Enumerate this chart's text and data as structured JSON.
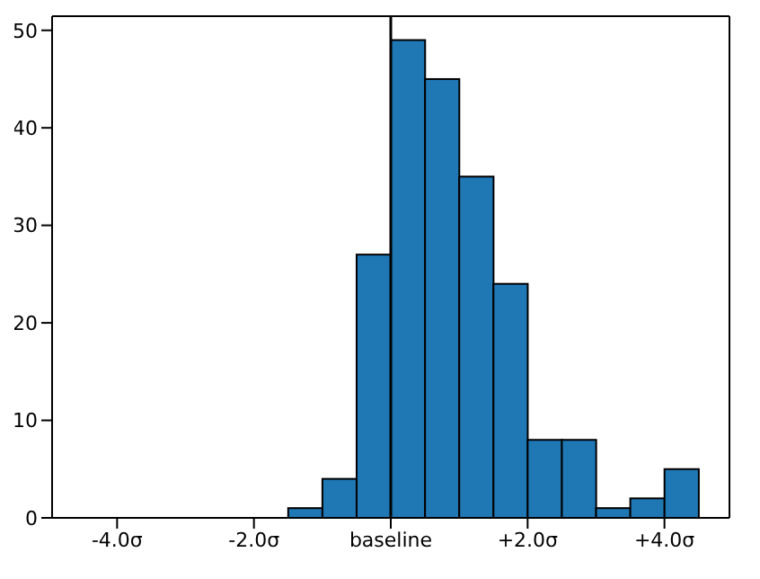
{
  "chart_data": {
    "type": "histogram",
    "bins": [
      -4.5,
      -4,
      -3.5,
      -3,
      -2.5,
      -2,
      -1.5,
      -1,
      -0.5,
      0,
      0.5,
      1,
      1.5,
      2,
      2.5,
      3,
      3.5,
      4,
      4.5
    ],
    "values": [
      0,
      0,
      0,
      0,
      0,
      0,
      1,
      4,
      27,
      49,
      45,
      35,
      24,
      8,
      8,
      1,
      2,
      5
    ],
    "color": "#1f77b4",
    "xlim": [
      -4.95,
      4.95
    ],
    "xticks": [
      {
        "value": -4,
        "label": "-4.0σ"
      },
      {
        "value": -2,
        "label": "-2.0σ"
      },
      {
        "value": 0,
        "label": "baseline"
      },
      {
        "value": 2,
        "label": "+2.0σ"
      },
      {
        "value": 4,
        "label": "+4.0σ"
      }
    ],
    "ylim": [
      0,
      51.45
    ],
    "yticks": [
      0,
      10,
      20,
      30,
      40,
      50
    ],
    "ref_lines": [
      {
        "axis": "x",
        "value": 0,
        "color": "#000000"
      }
    ],
    "grid": false
  }
}
